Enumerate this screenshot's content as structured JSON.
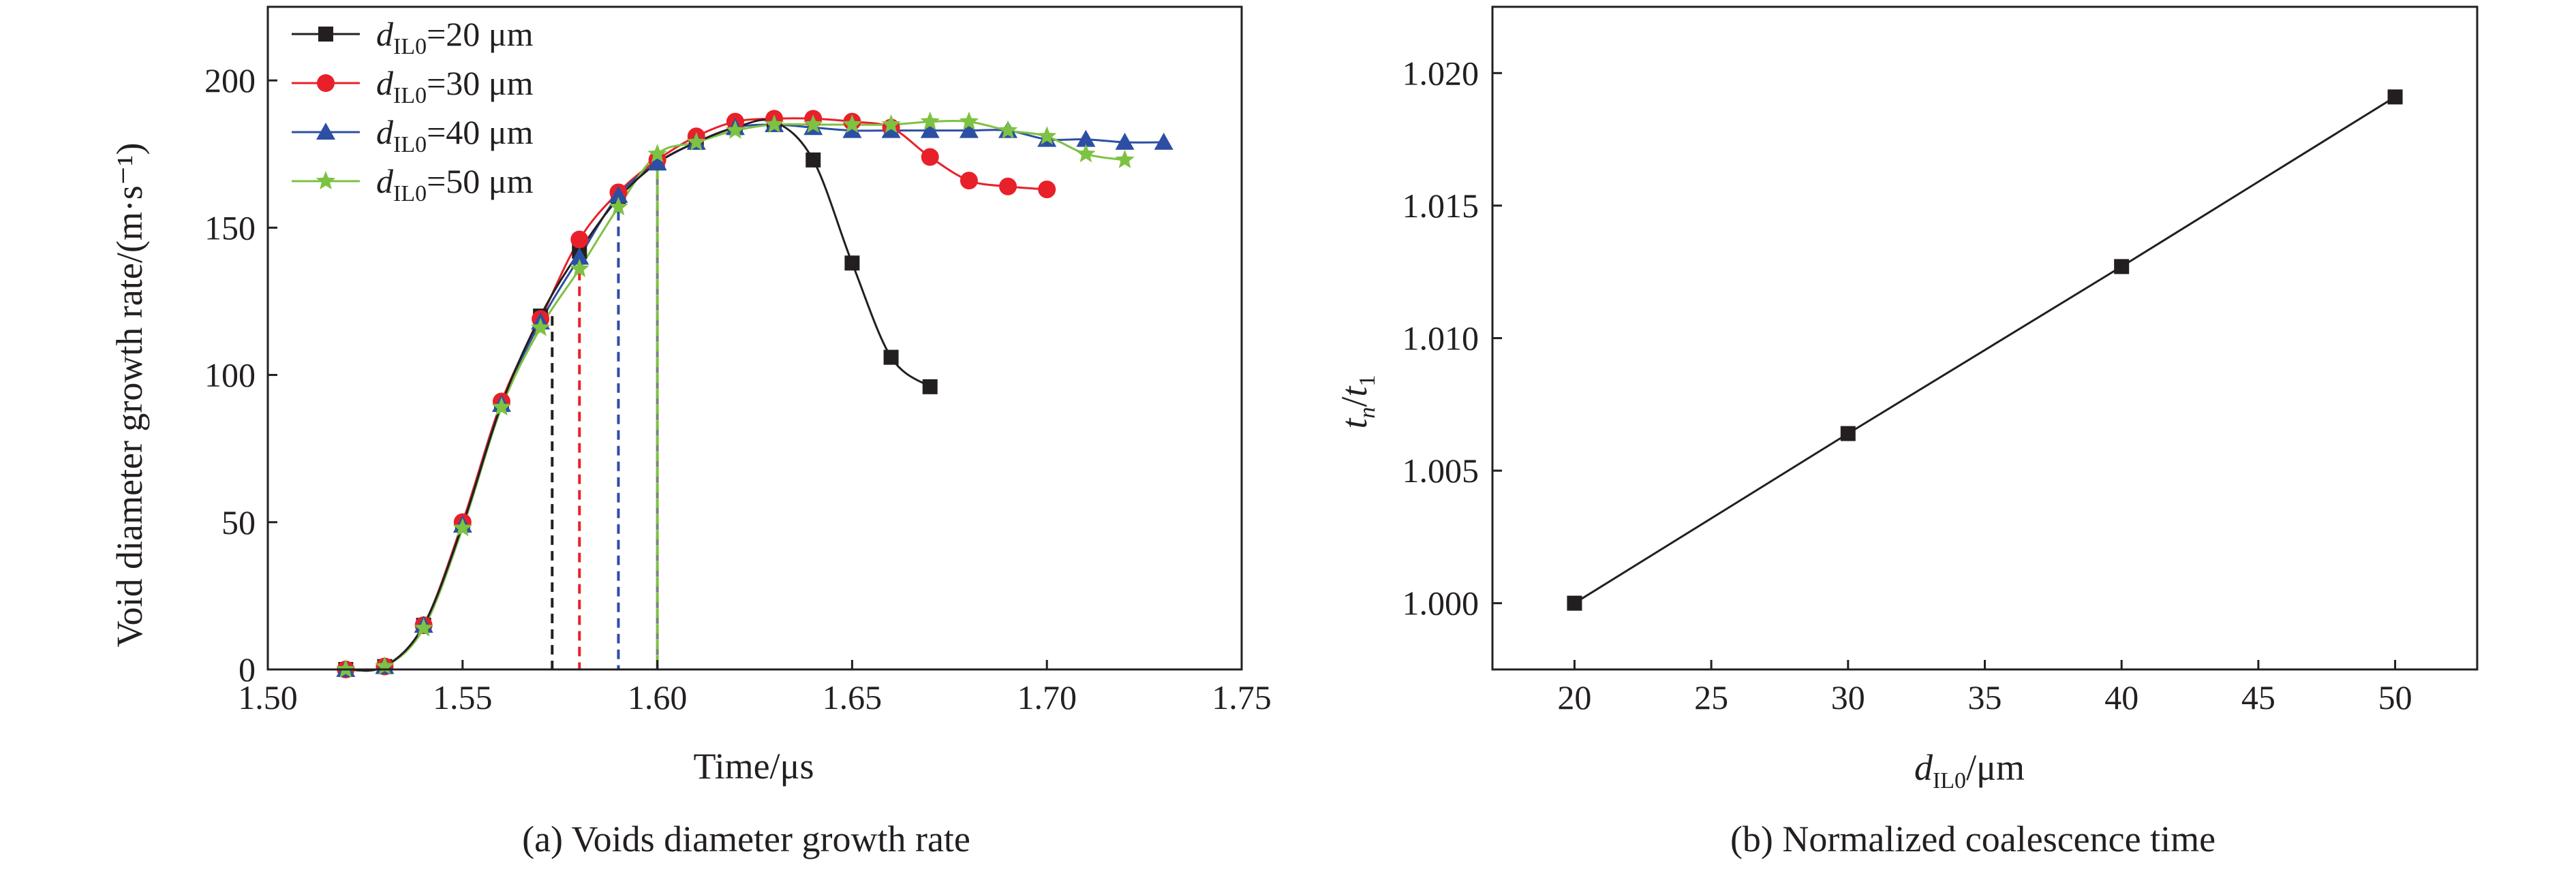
{
  "figure": {
    "caption_a": "(a) Voids diameter growth rate",
    "caption_b": "(b) Normalized coalescence time"
  },
  "chart_data": [
    {
      "type": "line",
      "panel": "a",
      "xlabel": "Time/μs",
      "ylabel": "Void diameter growth rate/(m·s⁻¹)",
      "xlim": [
        1.5,
        1.75
      ],
      "ylim": [
        0,
        225
      ],
      "xticks": [
        "1.50",
        "1.55",
        "1.60",
        "1.65",
        "1.70",
        "1.75"
      ],
      "yticks": [
        "0",
        "50",
        "100",
        "150",
        "200"
      ],
      "legend_position": "top-left",
      "series": [
        {
          "name": "dIL0=20 μm",
          "legend": {
            "var": "d",
            "sub": "IL0",
            "rest": "=20 μm"
          },
          "color": "#231f20",
          "marker": "square",
          "x": [
            1.52,
            1.53,
            1.54,
            1.55,
            1.56,
            1.57,
            1.58,
            1.59,
            1.6,
            1.61,
            1.62,
            1.63,
            1.64,
            1.65,
            1.66,
            1.67
          ],
          "y": [
            0,
            1,
            15,
            49,
            90,
            120,
            142,
            160,
            172,
            179,
            184,
            186,
            173,
            138,
            106,
            96
          ]
        },
        {
          "name": "dIL0=30 μm",
          "legend": {
            "var": "d",
            "sub": "IL0",
            "rest": "=30 μm"
          },
          "color": "#e8202a",
          "marker": "circle",
          "x": [
            1.52,
            1.53,
            1.54,
            1.55,
            1.56,
            1.57,
            1.58,
            1.59,
            1.6,
            1.61,
            1.62,
            1.63,
            1.64,
            1.65,
            1.66,
            1.67,
            1.68,
            1.69,
            1.7
          ],
          "y": [
            0,
            1,
            15,
            50,
            91,
            119,
            146,
            162,
            173,
            181,
            186,
            187,
            187,
            186,
            184,
            174,
            166,
            164,
            163
          ]
        },
        {
          "name": "dIL0=40 μm",
          "legend": {
            "var": "d",
            "sub": "IL0",
            "rest": "=40 μm"
          },
          "color": "#2d4fa3",
          "marker": "triangle",
          "x": [
            1.52,
            1.53,
            1.54,
            1.55,
            1.56,
            1.57,
            1.58,
            1.59,
            1.6,
            1.61,
            1.62,
            1.63,
            1.64,
            1.65,
            1.66,
            1.67,
            1.68,
            1.69,
            1.7,
            1.71,
            1.72,
            1.73
          ],
          "y": [
            0,
            1,
            15,
            49,
            90,
            118,
            140,
            161,
            172,
            179,
            184,
            185,
            184,
            183,
            183,
            183,
            183,
            183,
            180,
            180,
            179,
            179
          ]
        },
        {
          "name": "dIL0=50 μm",
          "legend": {
            "var": "d",
            "sub": "IL0",
            "rest": "=50 μm"
          },
          "color": "#7dc242",
          "marker": "star",
          "x": [
            1.52,
            1.53,
            1.54,
            1.55,
            1.56,
            1.57,
            1.58,
            1.59,
            1.6,
            1.61,
            1.62,
            1.63,
            1.64,
            1.65,
            1.66,
            1.67,
            1.68,
            1.69,
            1.7,
            1.71,
            1.72
          ],
          "y": [
            0,
            1,
            14,
            48,
            89,
            116,
            136,
            157,
            175,
            179,
            183,
            185,
            185,
            185,
            185,
            186,
            186,
            183,
            181,
            175,
            173
          ]
        }
      ],
      "markers_vertical": [
        {
          "x": 1.573,
          "y": 120,
          "color": "#231f20"
        },
        {
          "x": 1.58,
          "y": 146,
          "color": "#e8202a"
        },
        {
          "x": 1.59,
          "y": 161,
          "color": "#2d4fa3"
        },
        {
          "x": 1.6,
          "y": 173,
          "color": "#7f7f7f"
        },
        {
          "x": 1.6,
          "y": 175,
          "color": "#7dc242"
        }
      ]
    },
    {
      "type": "line",
      "panel": "b",
      "xlabel": "dIL0/μm",
      "ylabel": "tn/t1",
      "xlim": [
        17,
        53
      ],
      "ylim": [
        0.9975,
        1.0225
      ],
      "xticks": [
        "20",
        "25",
        "30",
        "35",
        "40",
        "45",
        "50"
      ],
      "yticks": [
        "1.000",
        "1.005",
        "1.010",
        "1.015",
        "1.020"
      ],
      "series": [
        {
          "color": "#231f20",
          "marker": "square",
          "x": [
            20,
            30,
            40,
            50
          ],
          "y": [
            1.0,
            1.0064,
            1.0127,
            1.0191
          ]
        }
      ]
    }
  ]
}
